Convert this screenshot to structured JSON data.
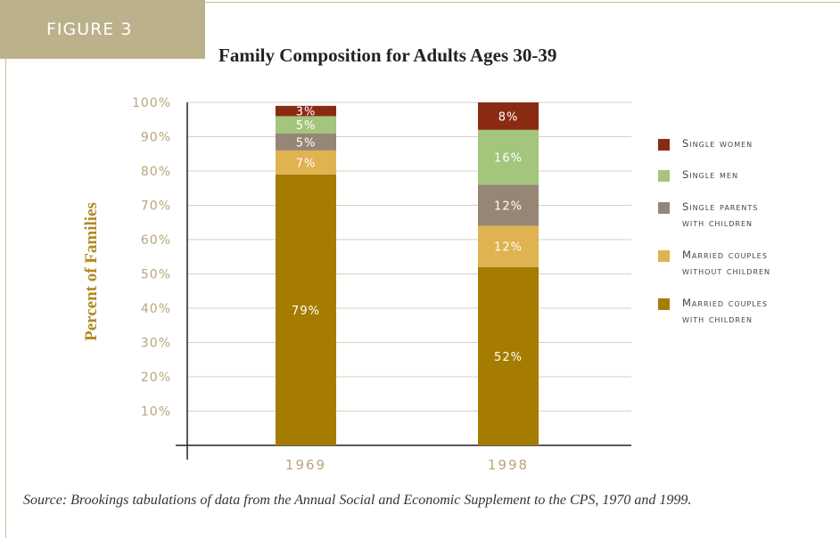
{
  "figure_label": "FIGURE 3",
  "source_note": "Source: Brookings tabulations of data from the Annual Social and Economic Supplement to the CPS, 1970 and 1999.",
  "colors": {
    "badge": "#bbb18a",
    "axis_text": "#b8a777",
    "y_title": "#b08a22"
  },
  "chart_data": {
    "type": "bar",
    "stacked": true,
    "title": "Family Composition for Adults Ages 30-39",
    "ylabel": "Percent of Families",
    "xlabel": "",
    "categories": [
      "1969",
      "1998"
    ],
    "ylim": [
      0,
      100
    ],
    "yticks": [
      "10%",
      "20%",
      "30%",
      "40%",
      "50%",
      "60%",
      "70%",
      "80%",
      "90%",
      "100%"
    ],
    "grid": true,
    "legend_position": "right",
    "series": [
      {
        "name": "Married couples with children",
        "values": [
          79,
          52
        ],
        "labels": [
          "79%",
          "52%"
        ],
        "color": "#a67c00"
      },
      {
        "name": "Married couples without children",
        "values": [
          7,
          12
        ],
        "labels": [
          "7%",
          "12%"
        ],
        "color": "#dfb34f"
      },
      {
        "name": "Single parents with children",
        "values": [
          5,
          12
        ],
        "labels": [
          "5%",
          "12%"
        ],
        "color": "#968676"
      },
      {
        "name": "Single men",
        "values": [
          5,
          16
        ],
        "labels": [
          "5%",
          "16%"
        ],
        "color": "#a3c57c"
      },
      {
        "name": "Single women",
        "values": [
          3,
          8
        ],
        "labels": [
          "3%",
          "8%"
        ],
        "color": "#8b2a12"
      }
    ],
    "legend_order": [
      "Single women",
      "Single men",
      "Single parents\nwith children",
      "Married couples\nwithout children",
      "Married couples\nwith children"
    ]
  }
}
